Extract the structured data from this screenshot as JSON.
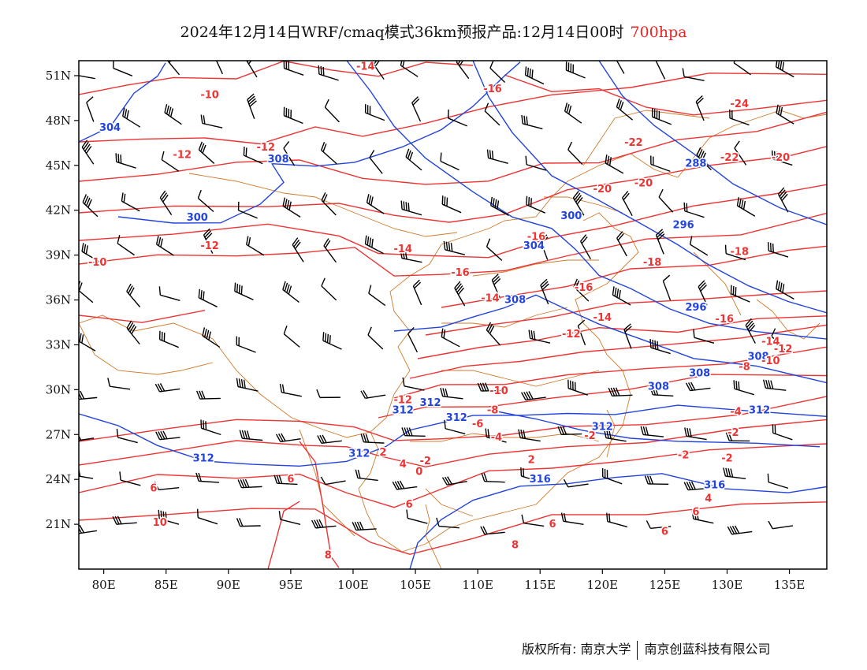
{
  "title": {
    "main": "2024年12月14日WRF/cmaq模式36km预报产品:12月14日00时",
    "level": "700hpa"
  },
  "axes": {
    "lat_labels": [
      "51N",
      "48N",
      "45N",
      "42N",
      "39N",
      "36N",
      "33N",
      "30N",
      "27N",
      "24N",
      "21N"
    ],
    "lat_values": [
      51,
      48,
      45,
      42,
      39,
      36,
      33,
      30,
      27,
      24,
      21
    ],
    "lon_labels": [
      "80E",
      "85E",
      "90E",
      "95E",
      "100E",
      "105E",
      "110E",
      "115E",
      "120E",
      "125E",
      "130E",
      "135E"
    ],
    "lon_values": [
      80,
      85,
      90,
      95,
      100,
      105,
      110,
      115,
      120,
      125,
      130,
      135
    ],
    "lon_range": [
      78,
      138
    ],
    "lat_range": [
      18,
      52
    ]
  },
  "colors": {
    "geopotential": "#2244dd",
    "temperature": "#ee3333",
    "border": "#d07a2a",
    "wind": "#000000",
    "frame": "#000000"
  },
  "geopotential_labels": [
    {
      "text": "304",
      "lon": 80.5,
      "lat": 47.3
    },
    {
      "text": "308",
      "lon": 94.0,
      "lat": 45.2
    },
    {
      "text": "300",
      "lon": 87.5,
      "lat": 41.3
    },
    {
      "text": "288",
      "lon": 127.5,
      "lat": 44.9
    },
    {
      "text": "300",
      "lon": 117.5,
      "lat": 41.4
    },
    {
      "text": "296",
      "lon": 126.5,
      "lat": 40.8
    },
    {
      "text": "304",
      "lon": 114.5,
      "lat": 39.4
    },
    {
      "text": "308",
      "lon": 113.0,
      "lat": 35.8
    },
    {
      "text": "296",
      "lon": 127.5,
      "lat": 35.3
    },
    {
      "text": "308",
      "lon": 127.8,
      "lat": 30.9
    },
    {
      "text": "312",
      "lon": 104.0,
      "lat": 28.4
    },
    {
      "text": "312",
      "lon": 106.2,
      "lat": 28.9
    },
    {
      "text": "312",
      "lon": 108.3,
      "lat": 27.9
    },
    {
      "text": "308",
      "lon": 124.5,
      "lat": 30.0
    },
    {
      "text": "312",
      "lon": 120.0,
      "lat": 27.3
    },
    {
      "text": "312",
      "lon": 88.0,
      "lat": 25.2
    },
    {
      "text": "312",
      "lon": 100.5,
      "lat": 25.5
    },
    {
      "text": "316",
      "lon": 115.0,
      "lat": 23.8
    },
    {
      "text": "316",
      "lon": 129.0,
      "lat": 23.4
    },
    {
      "text": "308",
      "lon": 132.5,
      "lat": 32.0
    },
    {
      "text": "312",
      "lon": 132.6,
      "lat": 28.4
    }
  ],
  "temperature_labels": [
    {
      "text": "-14",
      "lon": 101.0,
      "lat": 51.4
    },
    {
      "text": "-10",
      "lon": 88.5,
      "lat": 49.5
    },
    {
      "text": "-12",
      "lon": 93.0,
      "lat": 46.0
    },
    {
      "text": "-12",
      "lon": 86.3,
      "lat": 45.5
    },
    {
      "text": "-16",
      "lon": 111.2,
      "lat": 49.9
    },
    {
      "text": "-24",
      "lon": 131.0,
      "lat": 48.9
    },
    {
      "text": "-22",
      "lon": 122.5,
      "lat": 46.3
    },
    {
      "text": "-22",
      "lon": 130.2,
      "lat": 45.3
    },
    {
      "text": "-20",
      "lon": 134.3,
      "lat": 45.3
    },
    {
      "text": "-20",
      "lon": 120.0,
      "lat": 43.2
    },
    {
      "text": "-20",
      "lon": 123.3,
      "lat": 43.6
    },
    {
      "text": "-12",
      "lon": 88.5,
      "lat": 39.4
    },
    {
      "text": "-10",
      "lon": 79.5,
      "lat": 38.3
    },
    {
      "text": "-14",
      "lon": 104.0,
      "lat": 39.2
    },
    {
      "text": "-16",
      "lon": 114.7,
      "lat": 40.0
    },
    {
      "text": "-18",
      "lon": 131.0,
      "lat": 39.0
    },
    {
      "text": "-18",
      "lon": 124.0,
      "lat": 38.3
    },
    {
      "text": "-16",
      "lon": 108.6,
      "lat": 37.6
    },
    {
      "text": "-16",
      "lon": 118.5,
      "lat": 36.6
    },
    {
      "text": "-14",
      "lon": 111.0,
      "lat": 35.9
    },
    {
      "text": "-14",
      "lon": 120.0,
      "lat": 34.6
    },
    {
      "text": "-16",
      "lon": 129.8,
      "lat": 34.5
    },
    {
      "text": "-12",
      "lon": 117.5,
      "lat": 33.5
    },
    {
      "text": "-14",
      "lon": 133.5,
      "lat": 33.0
    },
    {
      "text": "-12",
      "lon": 134.5,
      "lat": 32.5
    },
    {
      "text": "-10",
      "lon": 133.5,
      "lat": 31.7
    },
    {
      "text": "-8",
      "lon": 131.4,
      "lat": 31.3
    },
    {
      "text": "-10",
      "lon": 111.7,
      "lat": 29.7
    },
    {
      "text": "-12",
      "lon": 104.0,
      "lat": 29.1
    },
    {
      "text": "-8",
      "lon": 111.2,
      "lat": 28.4
    },
    {
      "text": "-6",
      "lon": 110.0,
      "lat": 27.5
    },
    {
      "text": "-4",
      "lon": 130.7,
      "lat": 28.3
    },
    {
      "text": "-2",
      "lon": 130.5,
      "lat": 26.9
    },
    {
      "text": "-2",
      "lon": 119.0,
      "lat": 26.7
    },
    {
      "text": "-4",
      "lon": 111.5,
      "lat": 26.6
    },
    {
      "text": "-2",
      "lon": 126.5,
      "lat": 25.4
    },
    {
      "text": "-2",
      "lon": 105.8,
      "lat": 25.0
    },
    {
      "text": "0",
      "lon": 105.3,
      "lat": 24.3
    },
    {
      "text": "2",
      "lon": 114.3,
      "lat": 25.1
    },
    {
      "text": "2",
      "lon": 102.4,
      "lat": 25.6
    },
    {
      "text": "4",
      "lon": 104.0,
      "lat": 24.8
    },
    {
      "text": "-2",
      "lon": 130.0,
      "lat": 25.2
    },
    {
      "text": "6",
      "lon": 95.0,
      "lat": 23.8
    },
    {
      "text": "6",
      "lon": 84.0,
      "lat": 23.2
    },
    {
      "text": "6",
      "lon": 104.5,
      "lat": 22.1
    },
    {
      "text": "4",
      "lon": 128.5,
      "lat": 22.5
    },
    {
      "text": "6",
      "lon": 127.5,
      "lat": 21.6
    },
    {
      "text": "6",
      "lon": 116.0,
      "lat": 20.8
    },
    {
      "text": "6",
      "lon": 125.0,
      "lat": 20.3
    },
    {
      "text": "10",
      "lon": 84.5,
      "lat": 20.9
    },
    {
      "text": "8",
      "lon": 98.0,
      "lat": 18.7
    },
    {
      "text": "8",
      "lon": 113.0,
      "lat": 19.4
    }
  ],
  "footer": {
    "copyright": "版权所有: 南京大学",
    "company": "南京创蓝科技有限公司"
  }
}
